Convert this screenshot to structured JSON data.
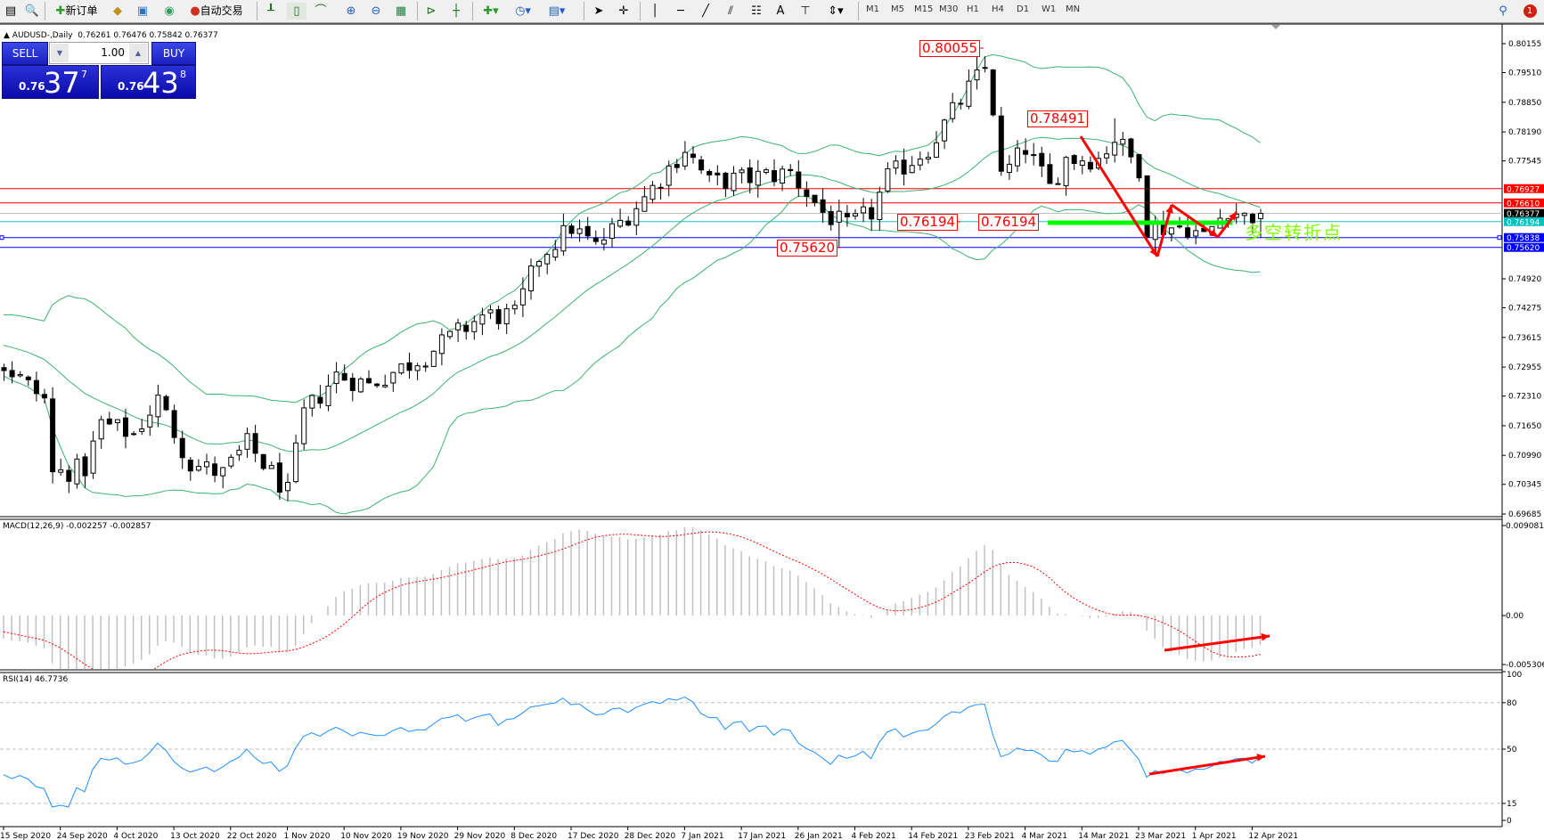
{
  "toolbar": {
    "new_order": "新订单",
    "auto_trading": "自动交易",
    "timeframes": [
      "M1",
      "M5",
      "M15",
      "M30",
      "H1",
      "H4",
      "D1",
      "W1",
      "MN"
    ],
    "notification_count": "1"
  },
  "chart": {
    "header": "AUDUSD-,Daily  0.76261 0.76476 0.75842 0.76377"
  },
  "trade_panel": {
    "sell_label": "SELL",
    "buy_label": "BUY",
    "lot": "1.00",
    "sell_prefix": "0.76",
    "sell_big": "37",
    "sell_sup": "7",
    "buy_prefix": "0.76",
    "buy_big": "43",
    "buy_sup": "8"
  },
  "price_axis": {
    "ticks": [
      "0.80155",
      "0.79510",
      "0.78850",
      "0.78190",
      "0.77545",
      "0.74920",
      "0.74275",
      "0.73615",
      "0.72955",
      "0.72310",
      "0.71650",
      "0.70990",
      "0.70345",
      "0.69685"
    ],
    "tags": [
      {
        "value": "0.76927",
        "color": "#ff0000"
      },
      {
        "value": "0.76610",
        "color": "#ff0000"
      },
      {
        "value": "0.76377",
        "color": "#000000"
      },
      {
        "value": "0.76194",
        "color": "#00c0c0"
      },
      {
        "value": "0.75838",
        "color": "#0000ff"
      },
      {
        "value": "0.75620",
        "color": "#0000ff"
      }
    ]
  },
  "horizontal_lines": [
    {
      "price": 0.76927,
      "color": "#ff0000"
    },
    {
      "price": 0.7661,
      "color": "#ff0000"
    },
    {
      "price": 0.76377,
      "color": "#c0c0c0"
    },
    {
      "price": 0.76194,
      "color": "#20c0c0"
    },
    {
      "price": 0.75838,
      "color": "#0000ff"
    },
    {
      "price": 0.7562,
      "color": "#0000ff"
    }
  ],
  "annotations": {
    "high_label": "0.80055",
    "lower_high_label": "0.78491",
    "support_label_1": "0.76194",
    "support_label_2": "0.76194",
    "low_label": "0.75620",
    "turning_point_text": "多空转折点",
    "turning_point_color": "#7fff00",
    "arrow_color": "#ff0000",
    "pivot_line_color": "#00ff00"
  },
  "macd": {
    "label": "MACD(12,26,9) -0.002257 -0.002857",
    "axis": [
      "0.009081",
      "0.00",
      "-0.005306"
    ],
    "histogram_color": "#c0c0c0",
    "signal_color": "#ff0000"
  },
  "rsi": {
    "label": "RSI(14) 46.7736",
    "axis": [
      "100",
      "80",
      "50",
      "15",
      "0"
    ],
    "line_color": "#1e90ff"
  },
  "time_axis": [
    "15 Sep 2020",
    "24 Sep 2020",
    "4 Oct 2020",
    "13 Oct 2020",
    "22 Oct 2020",
    "1 Nov 2020",
    "10 Nov 2020",
    "19 Nov 2020",
    "29 Nov 2020",
    "8 Dec 2020",
    "17 Dec 2020",
    "28 Dec 2020",
    "7 Jan 2021",
    "17 Jan 2021",
    "26 Jan 2021",
    "4 Feb 2021",
    "14 Feb 2021",
    "23 Feb 2021",
    "4 Mar 2021",
    "14 Mar 2021",
    "23 Mar 2021",
    "1 Apr 2021",
    "12 Apr 2021"
  ],
  "chart_data": {
    "type": "candlestick",
    "symbol": "AUDUSD-",
    "timeframe": "Daily",
    "ylim": [
      0.69685,
      0.80155
    ],
    "indicators": [
      "Bollinger Bands(20,2)",
      "MACD(12,26,9)",
      "RSI(14)"
    ],
    "close_path_by_bar": [
      [
        -45,
        0.733
      ],
      [
        -30,
        0.742
      ],
      [
        -15,
        0.738
      ],
      [
        0,
        0.73
      ],
      [
        5,
        0.7223
      ],
      [
        6,
        0.7058
      ],
      [
        10,
        0.707
      ],
      [
        12,
        0.717
      ],
      [
        16,
        0.7146
      ],
      [
        19,
        0.7223
      ],
      [
        23,
        0.708
      ],
      [
        27,
        0.7058
      ],
      [
        30,
        0.7124
      ],
      [
        35,
        0.7015
      ],
      [
        37,
        0.719
      ],
      [
        41,
        0.7278
      ],
      [
        45,
        0.7256
      ],
      [
        52,
        0.7322
      ],
      [
        59,
        0.741
      ],
      [
        63,
        0.741
      ],
      [
        66,
        0.7541
      ],
      [
        70,
        0.7607
      ],
      [
        73,
        0.7563
      ],
      [
        79,
        0.7673
      ],
      [
        84,
        0.7783
      ],
      [
        87,
        0.7706
      ],
      [
        92,
        0.7717
      ],
      [
        97,
        0.7728
      ],
      [
        101,
        0.764
      ],
      [
        104,
        0.7607
      ],
      [
        107,
        0.764
      ],
      [
        109,
        0.7717
      ],
      [
        114,
        0.7783
      ],
      [
        119,
        0.7915
      ],
      [
        121,
        0.796
      ],
      [
        122,
        0.787
      ],
      [
        123,
        0.7717
      ],
      [
        126,
        0.7783
      ],
      [
        129,
        0.7695
      ],
      [
        131,
        0.776
      ],
      [
        135,
        0.776
      ],
      [
        137,
        0.7805
      ],
      [
        140,
        0.774
      ],
      [
        141,
        0.7607
      ],
      [
        146,
        0.7607
      ],
      [
        148,
        0.7585
      ],
      [
        151,
        0.765
      ],
      [
        153,
        0.7629
      ],
      [
        155,
        0.76377
      ]
    ],
    "marked_high": 0.80055,
    "marked_lower_high": 0.78491,
    "last_bar": {
      "open": 0.76261,
      "high": 0.76476,
      "low": 0.75842,
      "close": 0.76377
    }
  }
}
